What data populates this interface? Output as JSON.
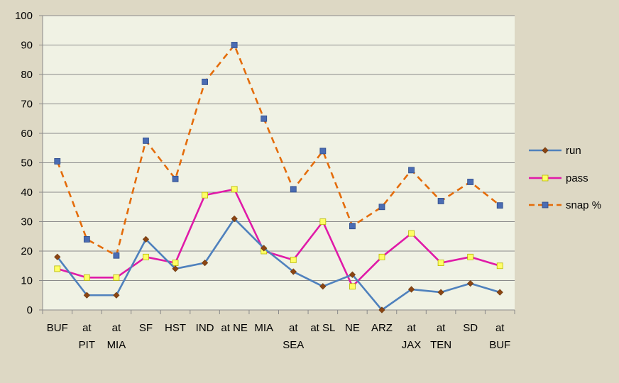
{
  "chart_data": {
    "type": "line",
    "title": "",
    "xlabel": "",
    "ylabel": "",
    "ylim": [
      0,
      100
    ],
    "yticks": [
      "0",
      "10",
      "20",
      "30",
      "40",
      "50",
      "60",
      "70",
      "80",
      "90",
      "100"
    ],
    "grid": "horizontal",
    "legend_position": "right",
    "categories": [
      [
        "BUF"
      ],
      [
        "at",
        "PIT"
      ],
      [
        "at",
        "MIA"
      ],
      [
        "SF"
      ],
      [
        "HST"
      ],
      [
        "IND"
      ],
      [
        "at NE"
      ],
      [
        "MIA"
      ],
      [
        "at",
        "SEA"
      ],
      [
        "at SL"
      ],
      [
        "NE"
      ],
      [
        "ARZ"
      ],
      [
        "at",
        "JAX"
      ],
      [
        "at",
        "TEN"
      ],
      [
        "SD"
      ],
      [
        "at",
        "BUF"
      ]
    ],
    "series": [
      {
        "name": "run",
        "color": "#4f81bd",
        "marker": "diamond",
        "marker_color": "#8b4513",
        "line_style": "solid",
        "values": [
          18,
          5,
          5,
          24,
          14,
          16,
          31,
          21,
          13,
          8,
          12,
          0,
          7,
          6,
          9,
          6
        ]
      },
      {
        "name": "pass",
        "color": "#e01aa8",
        "marker": "square",
        "marker_color": "#ffff66",
        "line_style": "solid",
        "values": [
          14,
          11,
          11,
          18,
          16,
          39,
          41,
          20,
          17,
          30,
          8,
          18,
          26,
          16,
          18,
          15
        ]
      },
      {
        "name": "snap %",
        "color": "#e46c0a",
        "marker": "square",
        "marker_color": "#4a6cb3",
        "line_style": "dashed",
        "values": [
          50.5,
          24,
          18.5,
          57.5,
          44.5,
          77.5,
          90,
          65,
          41,
          54,
          28.5,
          35,
          47.5,
          37,
          43.5,
          35.5
        ]
      }
    ]
  }
}
